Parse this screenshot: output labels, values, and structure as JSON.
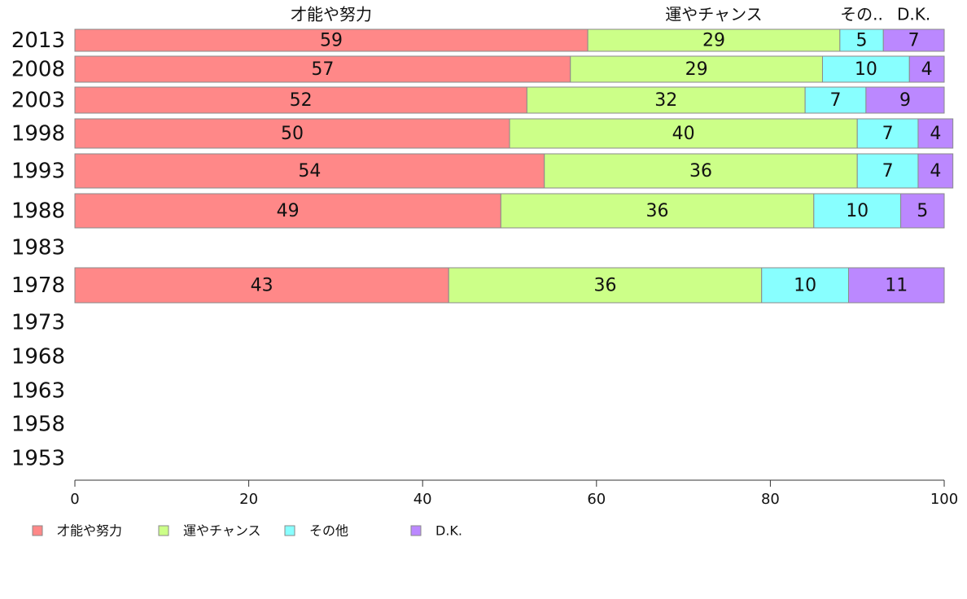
{
  "chart_data": {
    "type": "bar",
    "orientation": "horizontal",
    "stacked": true,
    "categories": [
      "2013",
      "2008",
      "2003",
      "1998",
      "1993",
      "1988",
      "1983",
      "1978",
      "1973",
      "1968",
      "1963",
      "1958",
      "1953"
    ],
    "series": [
      {
        "name": "才能や努力",
        "top_label": "才能や努力",
        "color": "#ff8888",
        "values": [
          59,
          57,
          52,
          50,
          54,
          49,
          null,
          43,
          null,
          null,
          null,
          null,
          null
        ]
      },
      {
        "name": "運やチャンス",
        "top_label": "運やチャンス",
        "color": "#ccff88",
        "values": [
          29,
          29,
          32,
          40,
          36,
          36,
          null,
          36,
          null,
          null,
          null,
          null,
          null
        ]
      },
      {
        "name": "その他",
        "top_label": "その..",
        "color": "#88ffff",
        "values": [
          5,
          10,
          7,
          7,
          7,
          10,
          null,
          10,
          null,
          null,
          null,
          null,
          null
        ]
      },
      {
        "name": "D.K.",
        "top_label": "D.K.",
        "color": "#bb88ff",
        "values": [
          7,
          4,
          9,
          4,
          4,
          5,
          null,
          11,
          null,
          null,
          null,
          null,
          null
        ]
      }
    ],
    "xlim": [
      0,
      100
    ],
    "x_ticks": [
      0,
      20,
      40,
      60,
      80,
      100
    ],
    "legend_position": "bottom-left",
    "grid": false
  }
}
